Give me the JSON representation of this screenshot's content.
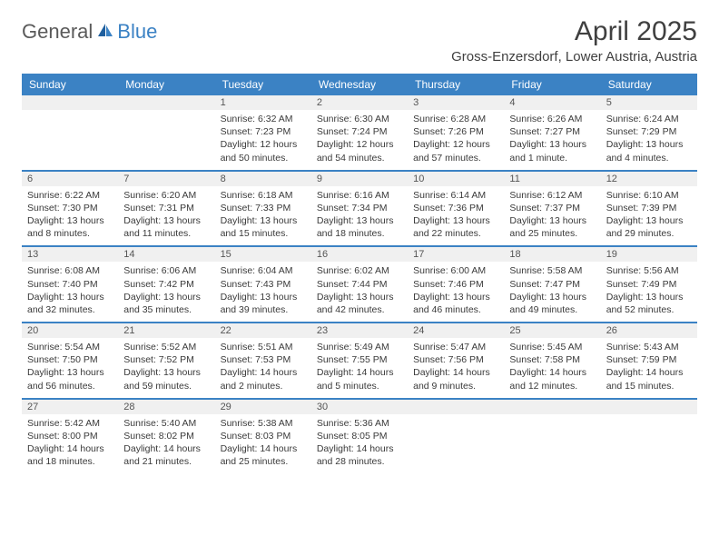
{
  "logo": {
    "general": "General",
    "blue": "Blue"
  },
  "title": "April 2025",
  "location": "Gross-Enzersdorf, Lower Austria, Austria",
  "colors": {
    "header_bg": "#3b82c4",
    "header_text": "#ffffff",
    "daynum_bg": "#f0f0f0",
    "text": "#3a3a3a",
    "title_text": "#404040",
    "logo_gray": "#5a5a5a",
    "logo_blue": "#3b82c4",
    "divider": "#3b82c4",
    "bg": "#ffffff"
  },
  "dayHeaders": [
    "Sunday",
    "Monday",
    "Tuesday",
    "Wednesday",
    "Thursday",
    "Friday",
    "Saturday"
  ],
  "weeks": [
    [
      {
        "empty": true
      },
      {
        "empty": true
      },
      {
        "n": "1",
        "sr": "Sunrise: 6:32 AM",
        "ss": "Sunset: 7:23 PM",
        "d1": "Daylight: 12 hours",
        "d2": "and 50 minutes."
      },
      {
        "n": "2",
        "sr": "Sunrise: 6:30 AM",
        "ss": "Sunset: 7:24 PM",
        "d1": "Daylight: 12 hours",
        "d2": "and 54 minutes."
      },
      {
        "n": "3",
        "sr": "Sunrise: 6:28 AM",
        "ss": "Sunset: 7:26 PM",
        "d1": "Daylight: 12 hours",
        "d2": "and 57 minutes."
      },
      {
        "n": "4",
        "sr": "Sunrise: 6:26 AM",
        "ss": "Sunset: 7:27 PM",
        "d1": "Daylight: 13 hours",
        "d2": "and 1 minute."
      },
      {
        "n": "5",
        "sr": "Sunrise: 6:24 AM",
        "ss": "Sunset: 7:29 PM",
        "d1": "Daylight: 13 hours",
        "d2": "and 4 minutes."
      }
    ],
    [
      {
        "n": "6",
        "sr": "Sunrise: 6:22 AM",
        "ss": "Sunset: 7:30 PM",
        "d1": "Daylight: 13 hours",
        "d2": "and 8 minutes."
      },
      {
        "n": "7",
        "sr": "Sunrise: 6:20 AM",
        "ss": "Sunset: 7:31 PM",
        "d1": "Daylight: 13 hours",
        "d2": "and 11 minutes."
      },
      {
        "n": "8",
        "sr": "Sunrise: 6:18 AM",
        "ss": "Sunset: 7:33 PM",
        "d1": "Daylight: 13 hours",
        "d2": "and 15 minutes."
      },
      {
        "n": "9",
        "sr": "Sunrise: 6:16 AM",
        "ss": "Sunset: 7:34 PM",
        "d1": "Daylight: 13 hours",
        "d2": "and 18 minutes."
      },
      {
        "n": "10",
        "sr": "Sunrise: 6:14 AM",
        "ss": "Sunset: 7:36 PM",
        "d1": "Daylight: 13 hours",
        "d2": "and 22 minutes."
      },
      {
        "n": "11",
        "sr": "Sunrise: 6:12 AM",
        "ss": "Sunset: 7:37 PM",
        "d1": "Daylight: 13 hours",
        "d2": "and 25 minutes."
      },
      {
        "n": "12",
        "sr": "Sunrise: 6:10 AM",
        "ss": "Sunset: 7:39 PM",
        "d1": "Daylight: 13 hours",
        "d2": "and 29 minutes."
      }
    ],
    [
      {
        "n": "13",
        "sr": "Sunrise: 6:08 AM",
        "ss": "Sunset: 7:40 PM",
        "d1": "Daylight: 13 hours",
        "d2": "and 32 minutes."
      },
      {
        "n": "14",
        "sr": "Sunrise: 6:06 AM",
        "ss": "Sunset: 7:42 PM",
        "d1": "Daylight: 13 hours",
        "d2": "and 35 minutes."
      },
      {
        "n": "15",
        "sr": "Sunrise: 6:04 AM",
        "ss": "Sunset: 7:43 PM",
        "d1": "Daylight: 13 hours",
        "d2": "and 39 minutes."
      },
      {
        "n": "16",
        "sr": "Sunrise: 6:02 AM",
        "ss": "Sunset: 7:44 PM",
        "d1": "Daylight: 13 hours",
        "d2": "and 42 minutes."
      },
      {
        "n": "17",
        "sr": "Sunrise: 6:00 AM",
        "ss": "Sunset: 7:46 PM",
        "d1": "Daylight: 13 hours",
        "d2": "and 46 minutes."
      },
      {
        "n": "18",
        "sr": "Sunrise: 5:58 AM",
        "ss": "Sunset: 7:47 PM",
        "d1": "Daylight: 13 hours",
        "d2": "and 49 minutes."
      },
      {
        "n": "19",
        "sr": "Sunrise: 5:56 AM",
        "ss": "Sunset: 7:49 PM",
        "d1": "Daylight: 13 hours",
        "d2": "and 52 minutes."
      }
    ],
    [
      {
        "n": "20",
        "sr": "Sunrise: 5:54 AM",
        "ss": "Sunset: 7:50 PM",
        "d1": "Daylight: 13 hours",
        "d2": "and 56 minutes."
      },
      {
        "n": "21",
        "sr": "Sunrise: 5:52 AM",
        "ss": "Sunset: 7:52 PM",
        "d1": "Daylight: 13 hours",
        "d2": "and 59 minutes."
      },
      {
        "n": "22",
        "sr": "Sunrise: 5:51 AM",
        "ss": "Sunset: 7:53 PM",
        "d1": "Daylight: 14 hours",
        "d2": "and 2 minutes."
      },
      {
        "n": "23",
        "sr": "Sunrise: 5:49 AM",
        "ss": "Sunset: 7:55 PM",
        "d1": "Daylight: 14 hours",
        "d2": "and 5 minutes."
      },
      {
        "n": "24",
        "sr": "Sunrise: 5:47 AM",
        "ss": "Sunset: 7:56 PM",
        "d1": "Daylight: 14 hours",
        "d2": "and 9 minutes."
      },
      {
        "n": "25",
        "sr": "Sunrise: 5:45 AM",
        "ss": "Sunset: 7:58 PM",
        "d1": "Daylight: 14 hours",
        "d2": "and 12 minutes."
      },
      {
        "n": "26",
        "sr": "Sunrise: 5:43 AM",
        "ss": "Sunset: 7:59 PM",
        "d1": "Daylight: 14 hours",
        "d2": "and 15 minutes."
      }
    ],
    [
      {
        "n": "27",
        "sr": "Sunrise: 5:42 AM",
        "ss": "Sunset: 8:00 PM",
        "d1": "Daylight: 14 hours",
        "d2": "and 18 minutes."
      },
      {
        "n": "28",
        "sr": "Sunrise: 5:40 AM",
        "ss": "Sunset: 8:02 PM",
        "d1": "Daylight: 14 hours",
        "d2": "and 21 minutes."
      },
      {
        "n": "29",
        "sr": "Sunrise: 5:38 AM",
        "ss": "Sunset: 8:03 PM",
        "d1": "Daylight: 14 hours",
        "d2": "and 25 minutes."
      },
      {
        "n": "30",
        "sr": "Sunrise: 5:36 AM",
        "ss": "Sunset: 8:05 PM",
        "d1": "Daylight: 14 hours",
        "d2": "and 28 minutes."
      },
      {
        "empty": true
      },
      {
        "empty": true
      },
      {
        "empty": true
      }
    ]
  ]
}
